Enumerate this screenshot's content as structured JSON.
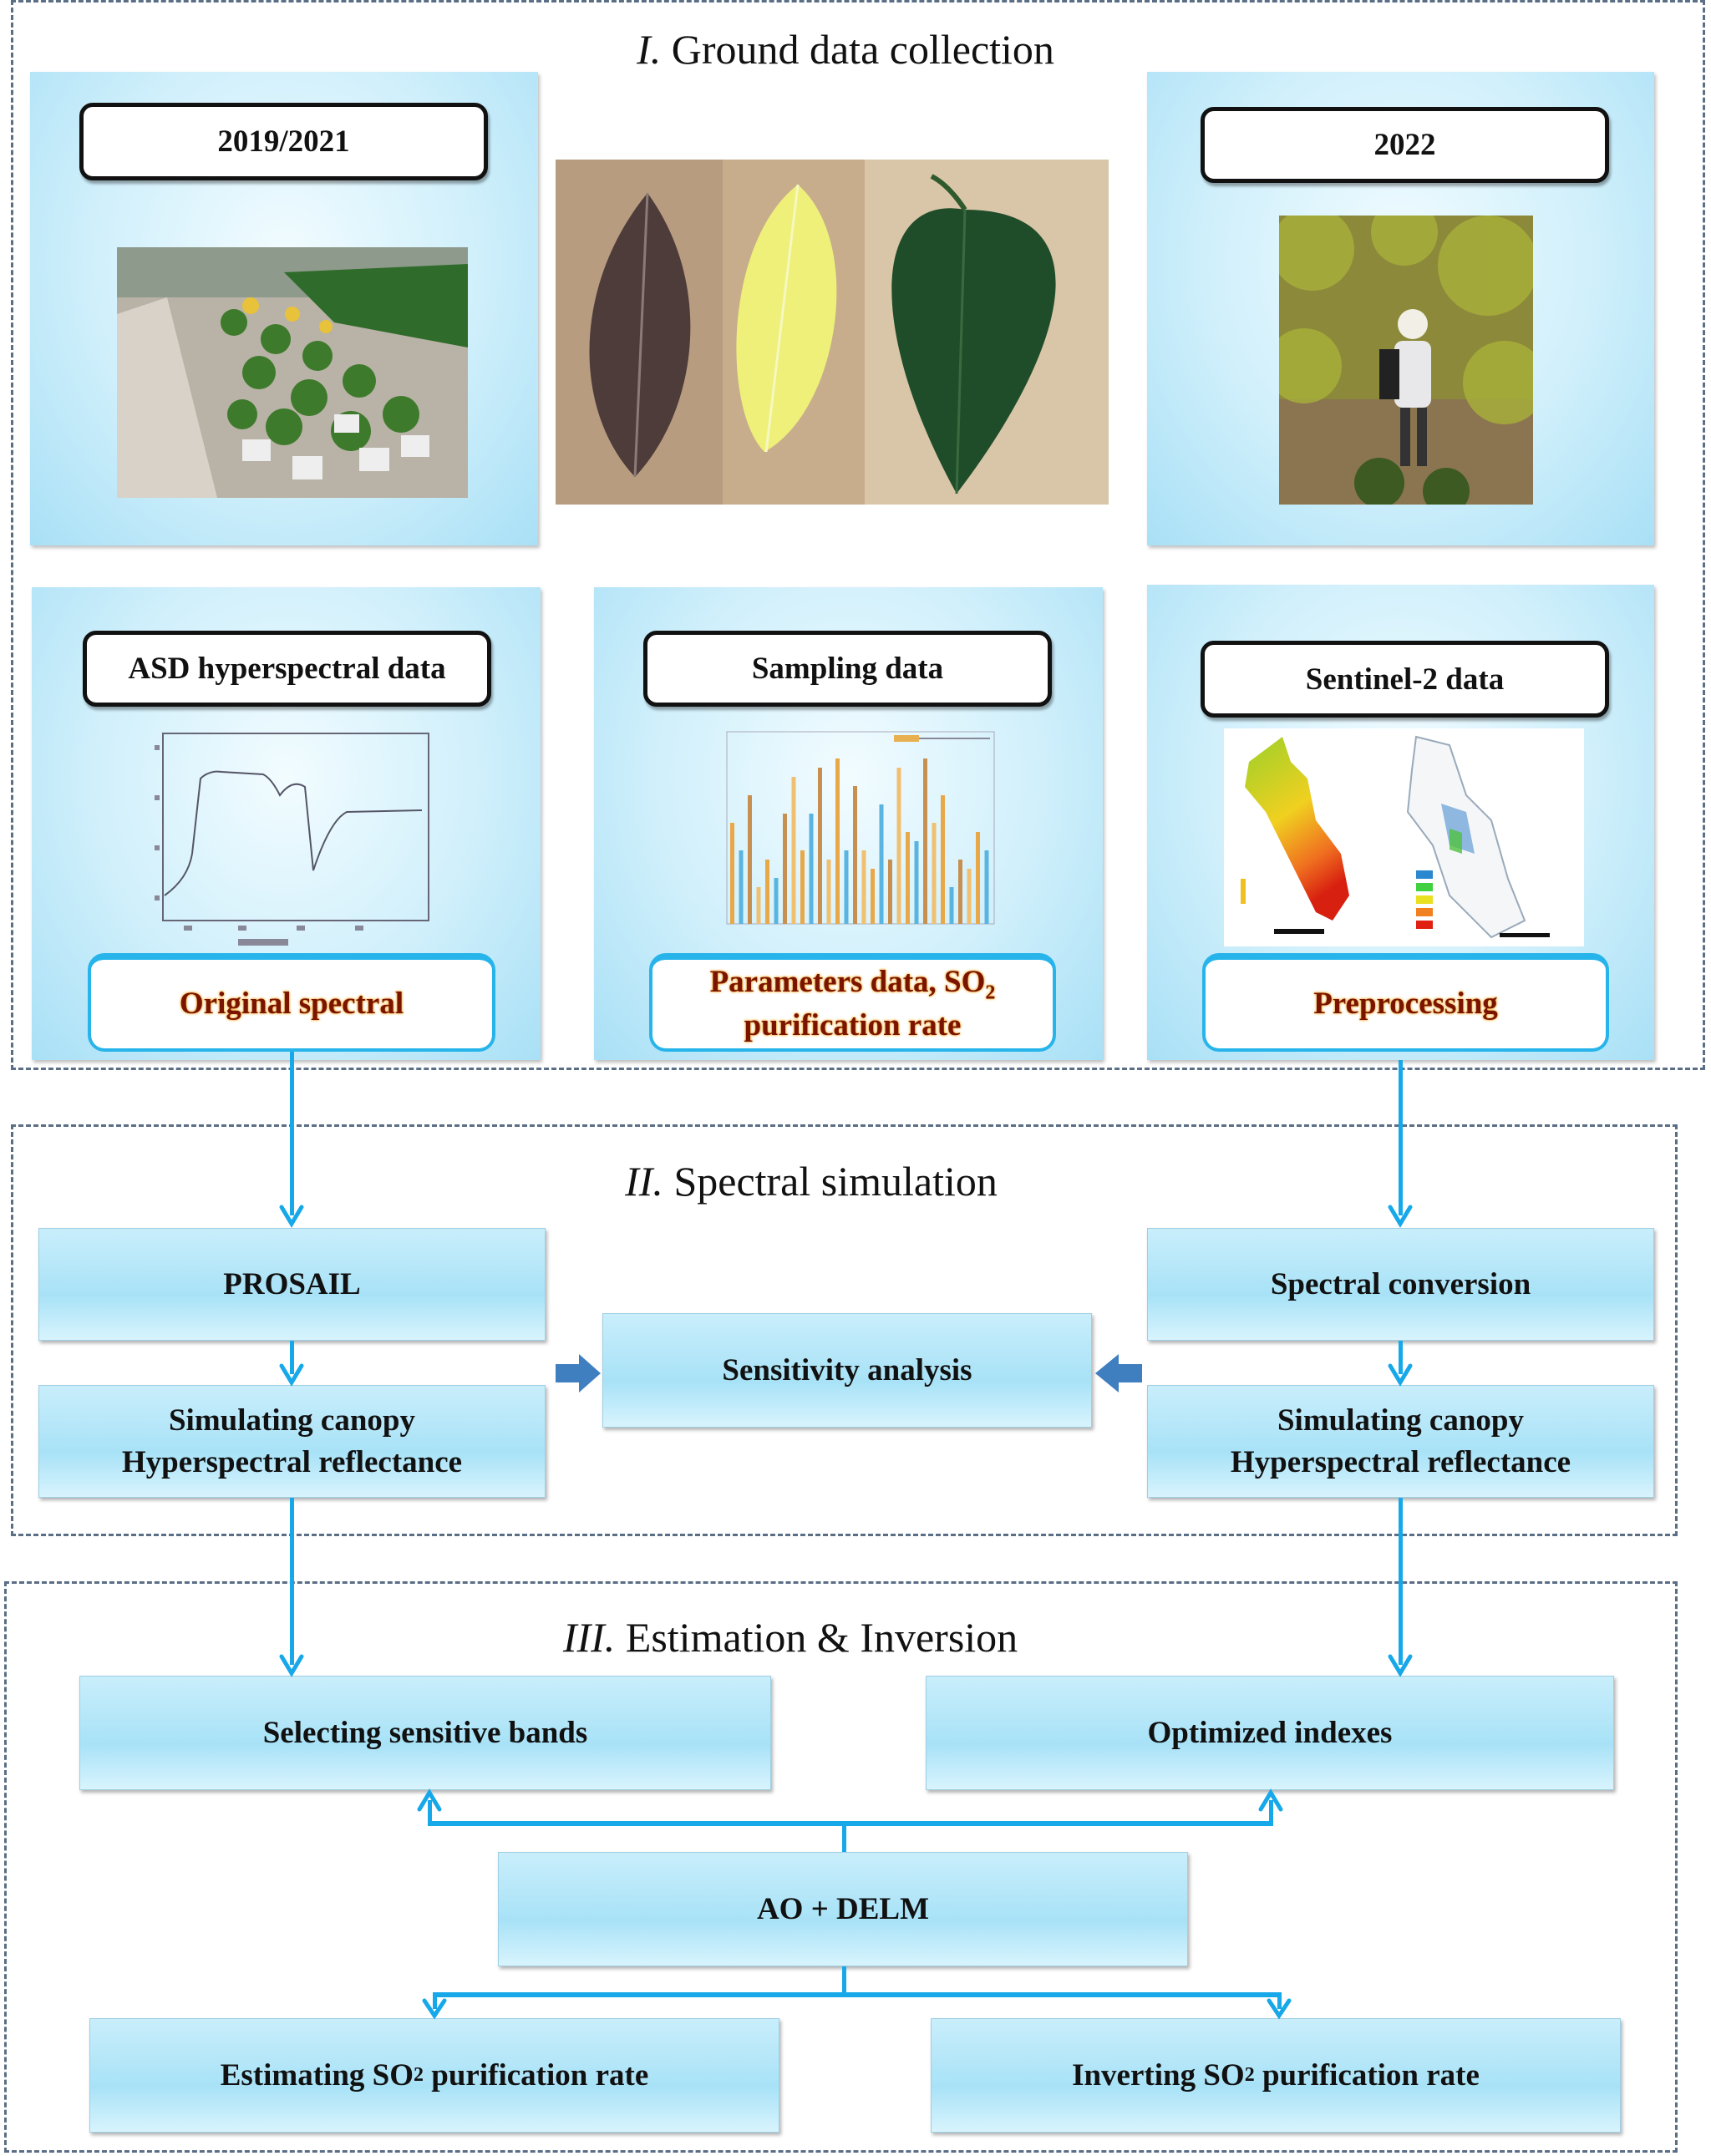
{
  "sections": {
    "ground": {
      "numeral": "I.",
      "title": "Ground data collection"
    },
    "simulation": {
      "numeral": "II.",
      "title": "Spectral simulation"
    },
    "estimation": {
      "numeral": "III.",
      "title": "Estimation & Inversion"
    }
  },
  "ground": {
    "left_year": "2019/2021",
    "right_year": "2022",
    "asd_label": "ASD hyperspectral data",
    "asd_output": "Original spectral",
    "sampling_label": "Sampling data",
    "sampling_output_line1": "Parameters data, SO",
    "sampling_output_sub": "2",
    "sampling_output_line2": "purification rate",
    "sentinel_label": "Sentinel-2 data",
    "sentinel_output": "Preprocessing"
  },
  "simulation": {
    "prosail": "PROSAIL",
    "sim_left_line1": "Simulating canopy",
    "sim_left_line2": "Hyperspectral reflectance",
    "sensitivity": "Sensitivity analysis",
    "spectral_conversion": "Spectral conversion",
    "sim_right_line1": "Simulating canopy",
    "sim_right_line2": "Hyperspectral reflectance"
  },
  "estimation": {
    "selecting": "Selecting sensitive bands",
    "optimized": "Optimized indexes",
    "model": "AO + DELM",
    "estimating_pre": "Estimating SO",
    "estimating_sub": "2",
    "estimating_post": " purification rate",
    "inverting_pre": "Inverting SO",
    "inverting_sub": "2",
    "inverting_post": " purification rate"
  },
  "colors": {
    "arrow": "#17a8ea",
    "block_arrow": "#3f7fc0",
    "output_text": "#7a1400",
    "box_fill": "#a8e2f7"
  }
}
